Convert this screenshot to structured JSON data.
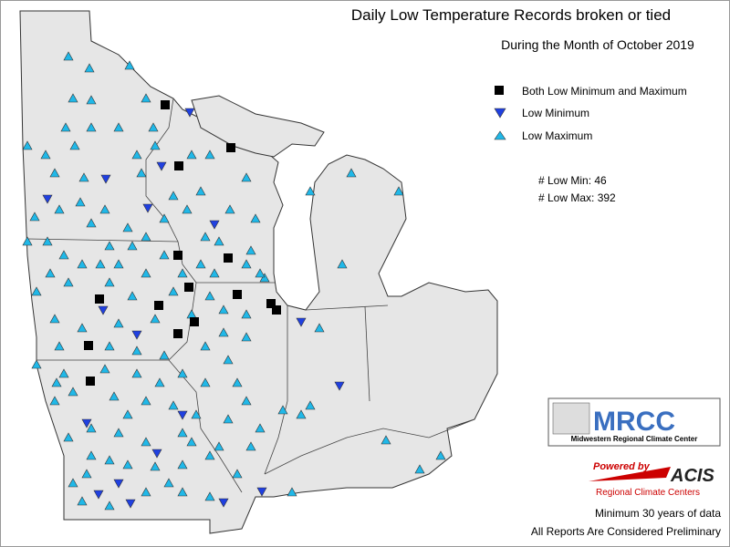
{
  "header": {
    "title": "Daily Low Temperature Records broken or tied",
    "subtitle": "During the Month of October 2019"
  },
  "legend": [
    "Both Low Minimum and Maximum",
    "Low Minimum",
    "Low Maximum"
  ],
  "counts": [
    "# Low Min: 46",
    "# Low Max: 392"
  ],
  "mrcc_logo": {
    "name": "MRCC",
    "subtitle": "Midwestern Regional Climate Center"
  },
  "acis_logo": {
    "powered": "Powered by",
    "name": "ACIS",
    "subtitle": "Regional Climate Centers"
  },
  "footer": [
    "Minimum 30 years of data",
    "All Reports Are Considered Preliminary"
  ]
}
